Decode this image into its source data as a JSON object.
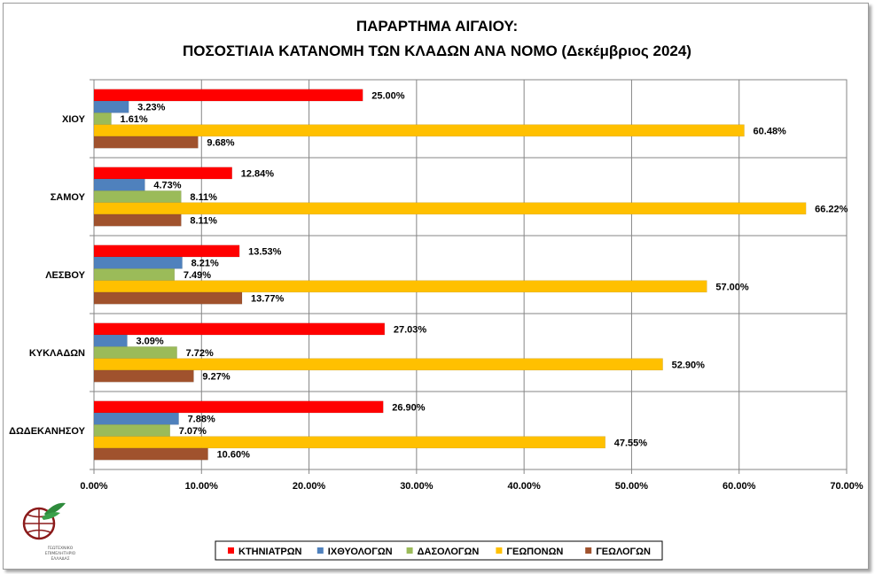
{
  "chart_data": {
    "type": "bar",
    "orientation": "horizontal",
    "title": [
      "ΠΑΡΑΡΤΗΜΑ ΑΙΓΑΙΟΥ:",
      "ΠΟΣΟΣΤΙΑΙΑ ΚΑΤΑΝΟΜΗ ΤΩΝ ΚΛΑΔΩΝ ΑΝΑ ΝΟΜΟ (Δεκέμβριος 2024)"
    ],
    "categories": [
      "ΧΙΟΥ",
      "ΣΑΜΟΥ",
      "ΛΕΣΒΟΥ",
      "ΚΥΚΛΑΔΩΝ",
      "ΔΩΔΕΚΑΝΗΣΟΥ"
    ],
    "series": [
      {
        "name": "ΚΤΗΝΙΑΤΡΩΝ",
        "color": "#ff0000",
        "values": [
          25.0,
          12.84,
          13.53,
          27.03,
          26.9
        ]
      },
      {
        "name": "ΙΧΘΥΟΛΟΓΩΝ",
        "color": "#4f81bd",
        "values": [
          3.23,
          4.73,
          8.21,
          3.09,
          7.88
        ]
      },
      {
        "name": "ΔΑΣΟΛΟΓΩΝ",
        "color": "#9bbb59",
        "values": [
          1.61,
          8.11,
          7.49,
          7.72,
          7.07
        ]
      },
      {
        "name": "ΓΕΩΠΟΝΩΝ",
        "color": "#ffc000",
        "values": [
          60.48,
          66.22,
          57.0,
          52.9,
          47.55
        ]
      },
      {
        "name": "ΓΕΩΛΟΓΩΝ",
        "color": "#a0522d",
        "values": [
          9.68,
          8.11,
          13.77,
          9.27,
          10.6
        ]
      }
    ],
    "data_labels": [
      [
        "25.00%",
        "12.84%",
        "13.53%",
        "27.03%",
        "26.90%"
      ],
      [
        "3.23%",
        "4.73%",
        "8.21%",
        "3.09%",
        "7.88%"
      ],
      [
        "1.61%",
        "8.11%",
        "7.49%",
        "7.72%",
        "7.07%"
      ],
      [
        "60.48%",
        "66.22%",
        "57.00%",
        "52.90%",
        "47.55%"
      ],
      [
        "9.68%",
        "8.11%",
        "13.77%",
        "9.27%",
        "10.60%"
      ]
    ],
    "x_ticks": [
      0,
      10,
      20,
      30,
      40,
      50,
      60,
      70
    ],
    "x_tick_labels": [
      "0.00%",
      "10.00%",
      "20.00%",
      "30.00%",
      "40.00%",
      "50.00%",
      "60.00%",
      "70.00%"
    ],
    "xlim": [
      0,
      70
    ],
    "xlabel": "",
    "ylabel": "",
    "grid": true,
    "legend_position": "bottom-center"
  },
  "logo": {
    "name": "tee-logo",
    "lines": [
      "ΓΕΩΤΕΧΝΙΚΟ",
      "ΕΠΙΜΕΛΗΤΗΡΙΟ",
      "ΕΛΛΑΔΑΣ"
    ]
  }
}
